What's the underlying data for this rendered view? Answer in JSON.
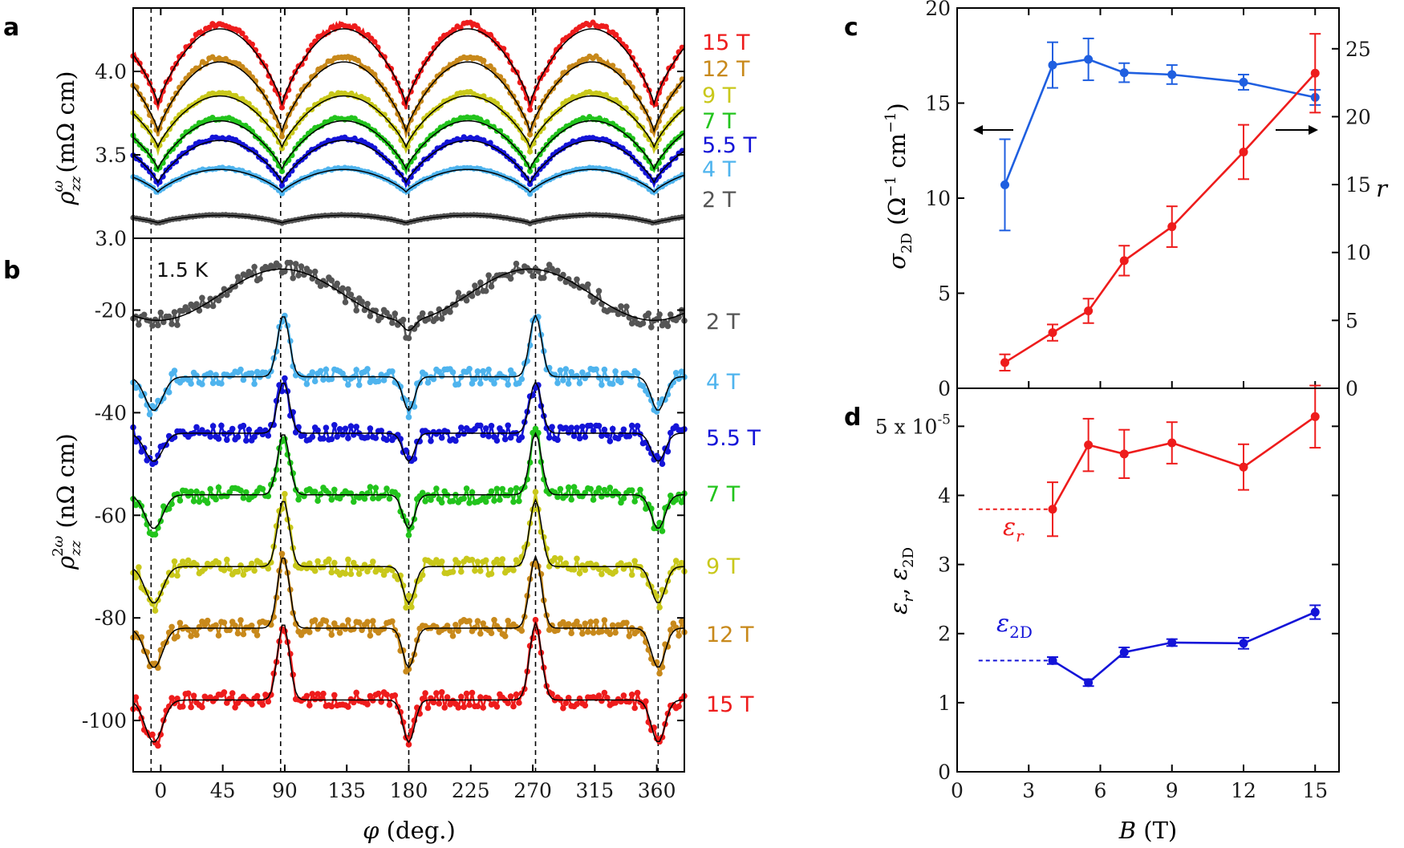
{
  "figure": {
    "panels": [
      "a",
      "b",
      "c",
      "d"
    ],
    "temperature_label": "1.5 K",
    "x_axis_ab": "φ (deg.)",
    "x_axis_cd": "B (T)",
    "y_axis_a": "ρzzω (mΩ cm)",
    "y_axis_b": "ρzz2ω (nΩ cm)",
    "y_axis_c_left": "σ2D (Ω−1 cm−1)",
    "y_axis_c_right": "r",
    "y_axis_d": "εr, ε2D",
    "d_ytick_top": "5 x 10-5",
    "d_label_r": "εr",
    "d_label_2d": "ε2D",
    "colors": {
      "15 T": "#ee1c1c",
      "12 T": "#c8891b",
      "9 T": "#c9c81b",
      "7 T": "#22c41c",
      "5.5 T": "#1414d8",
      "4 T": "#4fb4ee",
      "2 T": "#555555"
    }
  },
  "chart_data": [
    {
      "panel": "a",
      "type": "line",
      "xlabel": "φ (deg.)",
      "ylabel": "ρzzω (mΩ cm)",
      "xlim": [
        -20,
        380
      ],
      "ylim": [
        3.0,
        4.38
      ],
      "xticks": [
        0,
        45,
        90,
        135,
        180,
        225,
        270,
        315,
        360
      ],
      "yticks": [
        3.0,
        3.5,
        4.0
      ],
      "ytick_labels": [
        "3.0",
        "3.5",
        "4.0"
      ],
      "dashed_lines_deg": [
        -7,
        87,
        180,
        272,
        361
      ],
      "series": [
        {
          "name": "15 T",
          "color": "#ee1c1c",
          "min": 3.78,
          "max": 4.28
        },
        {
          "name": "12 T",
          "color": "#c8891b",
          "min": 3.62,
          "max": 4.08
        },
        {
          "name": "9 T",
          "color": "#c9c81b",
          "min": 3.53,
          "max": 3.87
        },
        {
          "name": "7 T",
          "color": "#22c41c",
          "min": 3.4,
          "max": 3.72
        },
        {
          "name": "5.5 T",
          "color": "#1414d8",
          "min": 3.32,
          "max": 3.6
        },
        {
          "name": "4 T",
          "color": "#4fb4ee",
          "min": 3.27,
          "max": 3.42
        },
        {
          "name": "2 T",
          "color": "#555555",
          "min": 3.09,
          "max": 3.14
        }
      ]
    },
    {
      "panel": "b",
      "type": "line",
      "xlabel": "φ (deg.)",
      "ylabel": "ρzz2ω (nΩ cm)",
      "xlim": [
        -20,
        380
      ],
      "ylim": [
        -110,
        -6
      ],
      "xticks": [
        0,
        45,
        90,
        135,
        180,
        225,
        270,
        315,
        360
      ],
      "yticks": [
        -100,
        -80,
        -60,
        -40,
        -20
      ],
      "ytick_labels": [
        "-100",
        "-80",
        "-60",
        "-40",
        "-20"
      ],
      "series": [
        {
          "name": "2 T",
          "color": "#555555",
          "base": -22,
          "peak": 12
        },
        {
          "name": "4 T",
          "color": "#4fb4ee",
          "base": -33,
          "peak": 12
        },
        {
          "name": "5.5 T",
          "color": "#1414d8",
          "base": -44,
          "peak": 10
        },
        {
          "name": "7 T",
          "color": "#22c41c",
          "base": -56,
          "peak": 12
        },
        {
          "name": "9 T",
          "color": "#c9c81b",
          "base": -70,
          "peak": 13
        },
        {
          "name": "12 T",
          "color": "#c8891b",
          "base": -82,
          "peak": 14
        },
        {
          "name": "15 T",
          "color": "#ee1c1c",
          "base": -96,
          "peak": 15
        }
      ]
    },
    {
      "panel": "c",
      "type": "line",
      "xlabel": "B (T)",
      "xlim": [
        0,
        16
      ],
      "xticks": [
        0,
        3,
        6,
        9,
        12,
        15
      ],
      "ylim_left": [
        0,
        20
      ],
      "yticks_left": [
        0,
        5,
        10,
        15,
        20
      ],
      "ylim_right": [
        0,
        28
      ],
      "yticks_right": [
        0,
        5,
        10,
        15,
        20,
        25
      ],
      "series": [
        {
          "name": "σ2D",
          "axis": "left",
          "color": "#1f5fe0",
          "x": [
            2,
            4,
            5.5,
            7,
            9,
            12,
            15
          ],
          "y": [
            10.7,
            17.0,
            17.3,
            16.6,
            16.5,
            16.1,
            15.3
          ],
          "err": [
            2.4,
            1.2,
            1.1,
            0.5,
            0.5,
            0.4,
            0.4
          ]
        },
        {
          "name": "r",
          "axis": "right",
          "color": "#ee1c1c",
          "x": [
            2,
            4,
            5.5,
            7,
            9,
            12,
            15
          ],
          "y": [
            1.9,
            4.1,
            5.7,
            9.4,
            11.9,
            17.4,
            23.2
          ],
          "err": [
            0.6,
            0.6,
            0.9,
            1.1,
            1.5,
            2.0,
            2.9
          ]
        }
      ]
    },
    {
      "panel": "d",
      "type": "line",
      "xlabel": "B (T)",
      "ylabel": "εr, ε2D",
      "xlim": [
        0,
        16
      ],
      "xticks": [
        0,
        3,
        6,
        9,
        12,
        15
      ],
      "ylim": [
        0,
        5.55
      ],
      "yticks": [
        0,
        1,
        2,
        3,
        4,
        5
      ],
      "ytick_labels": [
        "0",
        "1",
        "2",
        "3",
        "4",
        "5 x 10-5"
      ],
      "series": [
        {
          "name": "εr",
          "color": "#ee1c1c",
          "x": [
            4,
            5.5,
            7,
            9,
            12,
            15
          ],
          "y": [
            3.8,
            4.73,
            4.6,
            4.76,
            4.41,
            5.14
          ],
          "err": [
            0.39,
            0.38,
            0.35,
            0.3,
            0.33,
            0.45
          ],
          "dashed_y": 3.8
        },
        {
          "name": "ε2D",
          "color": "#1414d8",
          "x": [
            4,
            5.5,
            7,
            9,
            12,
            15
          ],
          "y": [
            1.61,
            1.29,
            1.73,
            1.87,
            1.86,
            2.31
          ],
          "err": [
            0.05,
            0.05,
            0.07,
            0.05,
            0.08,
            0.1
          ],
          "dashed_y": 1.61
        }
      ]
    }
  ]
}
